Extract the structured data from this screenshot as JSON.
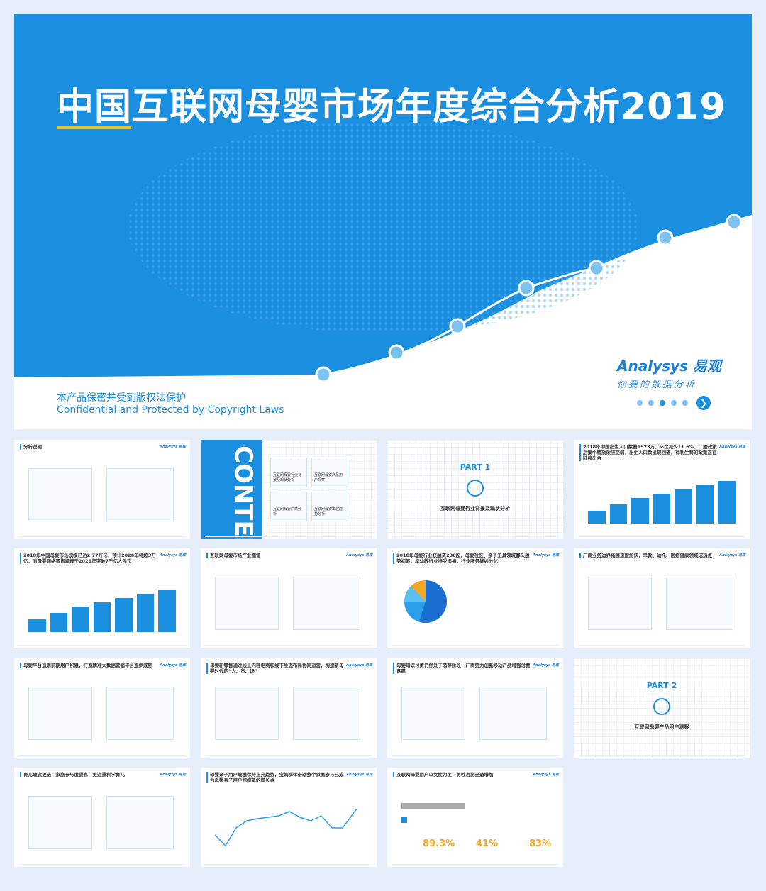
{
  "cover": {
    "title": "中国互联网母婴市场年度综合分析2019",
    "copyright_cn": "本产品保密并受到版权法保护",
    "copyright_en": "Confidential and Protected by Copyright Laws",
    "logo_en": "Analysys 易观",
    "logo_slogan": "你要的数据分析",
    "pager_current": 3,
    "pager_total": 5,
    "colors": {
      "brand": "#1a8fe0",
      "accent": "#f5c21b"
    }
  },
  "slides": [
    {
      "title": "分析说明",
      "type": "intro"
    },
    {
      "title": "CONTENTS",
      "type": "contents",
      "items": [
        "互联网母婴行业背景及现状分析",
        "互联网母婴产品用户洞察",
        "互联网母婴厂商分析",
        "互联网母婴发展趋势分析"
      ]
    },
    {
      "title": "PART 1",
      "subtitle": "互联网母婴行业背景及现状分析",
      "type": "part"
    },
    {
      "title": "2018年中国出生人口数量1523万，环比减少11.6%，二胎政策后集中释放效应变弱，出生人口数出现回落，有利生育的政策正在陆续出台",
      "type": "chart"
    },
    {
      "title": "2018年中国母婴市场规模已达2.77万亿，预计2020年将超3万亿，而母婴网络零售规模于2021年突破7千亿人民币",
      "type": "chart"
    },
    {
      "title": "互联网母婴市场产业图谱",
      "type": "map"
    },
    {
      "title": "2018年母婴行业获融资236起，母婴社区、亲子工具领域寡头趋势初显，早幼教行业持受追捧，行业服务继续分化",
      "type": "pie"
    },
    {
      "title": "厂商业务边界拓展速度加快，早教、幼托、医疗健康领域成热点",
      "type": "diagram"
    },
    {
      "title": "母婴平台运用前期用户积累，打造精准大数据营销平台逐步成熟",
      "type": "diagram"
    },
    {
      "title": "母婴新零售通过线上内容电商和线下生态布局协同运营，构建新母婴时代的“人、货、场”",
      "type": "diagram"
    },
    {
      "title": "母婴知识付费仍然处于萌芽阶段，厂商努力创新移动产品增强付费意愿",
      "type": "diagram"
    },
    {
      "title": "PART 2",
      "subtitle": "互联网母婴产品用户洞察",
      "type": "part"
    },
    {
      "title": "育儿理念更迭：家庭参与度提高，更注重科学育儿",
      "type": "diagram"
    },
    {
      "title": "母婴亲子用户规模保持上升趋势，宝妈群体带动整个家庭参与已成为母婴亲子用户规模新的增长点",
      "type": "line"
    },
    {
      "title": "互联网母婴用户以女性为主，男性占比迅速增加",
      "type": "stats",
      "stats": [
        "89.3%",
        "41%",
        "83%"
      ]
    }
  ]
}
